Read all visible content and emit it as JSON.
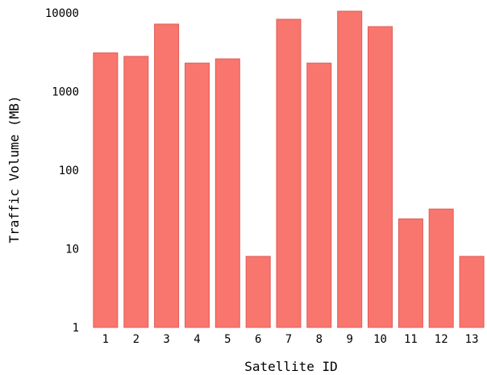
{
  "chart_data": {
    "type": "bar",
    "title": "",
    "xlabel": "Satellite ID",
    "ylabel": "Traffic Volume (MB)",
    "y_scale": "log",
    "ylim": [
      1,
      10000
    ],
    "y_ticks": [
      "1",
      "10",
      "100",
      "1000",
      "10000"
    ],
    "categories": [
      "1",
      "2",
      "3",
      "4",
      "5",
      "6",
      "7",
      "8",
      "9",
      "10",
      "11",
      "12",
      "13"
    ],
    "values": [
      3100,
      2800,
      7200,
      2300,
      2600,
      8,
      8300,
      2300,
      10500,
      6700,
      24,
      32,
      8
    ],
    "bar_color": "#f8766d",
    "bar_edge_color": "#e05c55",
    "grid": false,
    "legend": "none"
  }
}
